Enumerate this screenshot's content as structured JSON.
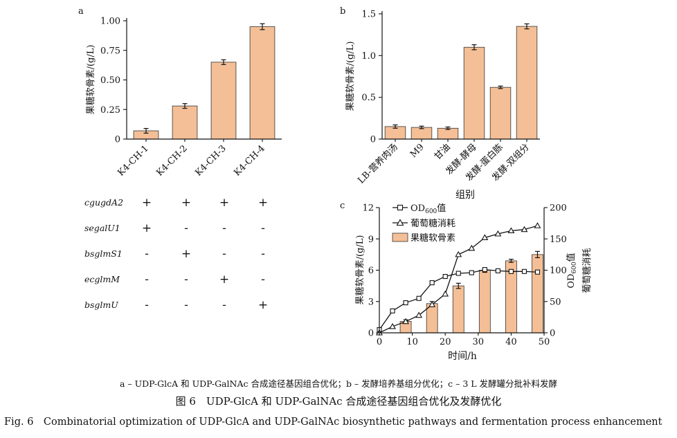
{
  "chart_data": [
    {
      "panel": "a",
      "type": "bar",
      "categories": [
        "K4-CH-1",
        "K4-CH-2",
        "K4-CH-3",
        "K4-CH-4"
      ],
      "values": [
        0.07,
        0.28,
        0.65,
        0.95
      ],
      "errors": [
        0.02,
        0.02,
        0.02,
        0.025
      ],
      "ylabel": "果糖软骨素/(g/L)",
      "ylim": [
        0,
        1.0
      ],
      "yticks": [
        "0",
        "0.25",
        "0.50",
        "0.75",
        "1.00"
      ],
      "bar_color": "#f4bf96"
    },
    {
      "panel": "b",
      "type": "bar",
      "categories": [
        "LB-营养肉汤",
        "M9",
        "甘油",
        "发酵-酵母",
        "发酵-蛋白胨",
        "发酵-双组分"
      ],
      "values": [
        0.15,
        0.14,
        0.13,
        1.1,
        0.62,
        1.35
      ],
      "errors": [
        0.02,
        0.015,
        0.015,
        0.03,
        0.015,
        0.03
      ],
      "xlabel": "组别",
      "ylabel": "果糖软骨素/(g/L)",
      "ylim": [
        0,
        1.5
      ],
      "yticks": [
        "0",
        "0.5",
        "1.0",
        "1.5"
      ],
      "bar_color": "#f4bf96"
    },
    {
      "panel": "c",
      "type": "line",
      "xlabel": "时间/h",
      "xlim": [
        0,
        50
      ],
      "xticks": [
        "0",
        "10",
        "20",
        "30",
        "40",
        "50"
      ],
      "ylabel_left": "果糖软骨素/(g/L)",
      "ylim_left": [
        0,
        12
      ],
      "yticks_left": [
        "0",
        "3",
        "6",
        "9",
        "12"
      ],
      "ylabel_right_1": "OD600值",
      "ylabel_right_2": "葡萄糖消耗",
      "ylim_right": [
        0,
        200
      ],
      "yticks_right": [
        "0",
        "50",
        "100",
        "150",
        "200"
      ],
      "legend": {
        "od_prefix": "OD",
        "od_sub": "600",
        "od_suffix": "值",
        "glucose": "葡萄糖消耗",
        "bars": "果糖软骨素"
      },
      "series": [
        {
          "name": "OD600值",
          "marker": "square",
          "axis": "right",
          "x": [
            0,
            4,
            8,
            12,
            16,
            20,
            24,
            28,
            32,
            36,
            40,
            44,
            48
          ],
          "values": [
            5,
            35,
            48,
            55,
            80,
            90,
            95,
            96,
            101,
            99,
            98,
            98,
            97
          ]
        },
        {
          "name": "葡萄糖消耗",
          "marker": "triangle",
          "axis": "right",
          "x": [
            0,
            4,
            8,
            12,
            16,
            20,
            24,
            28,
            32,
            36,
            40,
            44,
            48
          ],
          "values": [
            0,
            10,
            18,
            28,
            45,
            62,
            125,
            135,
            152,
            158,
            163,
            165,
            171
          ]
        },
        {
          "name": "果糖软骨素",
          "type": "bar",
          "axis": "left",
          "x": [
            8,
            16,
            24,
            32,
            40,
            48
          ],
          "values": [
            1.1,
            2.8,
            4.5,
            6.0,
            6.9,
            7.5
          ],
          "errors": [
            0.15,
            0.2,
            0.25,
            0.2,
            0.15,
            0.3
          ]
        }
      ]
    }
  ],
  "panel_labels": {
    "a": "a",
    "b": "b",
    "c": "c"
  },
  "gene_table": {
    "rows": [
      {
        "gene": "cgugdA2",
        "marks": [
          "+",
          "+",
          "+",
          "+"
        ]
      },
      {
        "gene": "segalU1",
        "marks": [
          "+",
          "-",
          "-",
          "-"
        ]
      },
      {
        "gene": "bsglmS1",
        "marks": [
          "-",
          "+",
          "-",
          "-"
        ]
      },
      {
        "gene": "ecglmM",
        "marks": [
          "-",
          "-",
          "+",
          "-"
        ]
      },
      {
        "gene": "bsglmU",
        "marks": [
          "-",
          "-",
          "-",
          "+"
        ]
      }
    ]
  },
  "captions": {
    "subcaption": "a – UDP-GlcA 和 UDP-GalNAc 合成途径基因组合优化；b – 发酵培养基组分优化；c – 3 L 发酵罐分批补料发酵",
    "title": "图 6　UDP-GlcA 和 UDP-GalNAc 合成途径基因组合优化及发酵优化",
    "english": "Fig. 6　Combinatorial optimization of UDP-GlcA and UDP-GalNAc biosynthetic pathways and fermentation process enhancement"
  }
}
